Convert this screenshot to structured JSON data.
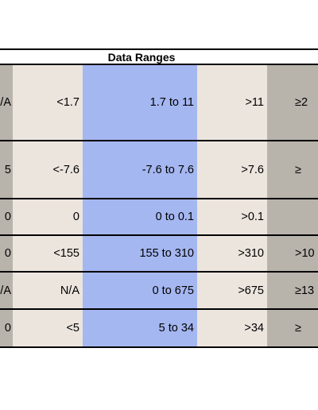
{
  "title": "Data Ranges",
  "colors": {
    "grey_column": "#b8b3ab",
    "beige_column": "#ece5de",
    "blue_column": "#a5b7f1",
    "border": "#000000"
  },
  "rows": [
    {
      "col0": "/A",
      "col1": "<1.7",
      "col2": "1.7 to 11",
      "col3": ">11",
      "col4": "≥2"
    },
    {
      "col0": "5",
      "col1": "<-7.6",
      "col2": "-7.6 to 7.6",
      "col3": ">7.6",
      "col4": "≥"
    },
    {
      "col0": "0",
      "col1": "0",
      "col2": "0 to 0.1",
      "col3": ">0.1",
      "col4": ""
    },
    {
      "col0": "0",
      "col1": "<155",
      "col2": "155 to 310",
      "col3": ">310",
      "col4": ">10"
    },
    {
      "col0": "/A",
      "col1": "N/A",
      "col2": "0 to 675",
      "col3": ">675",
      "col4": "≥13"
    },
    {
      "col0": "0",
      "col1": "<5",
      "col2": "5  to 34",
      "col3": ">34",
      "col4": "≥"
    }
  ]
}
